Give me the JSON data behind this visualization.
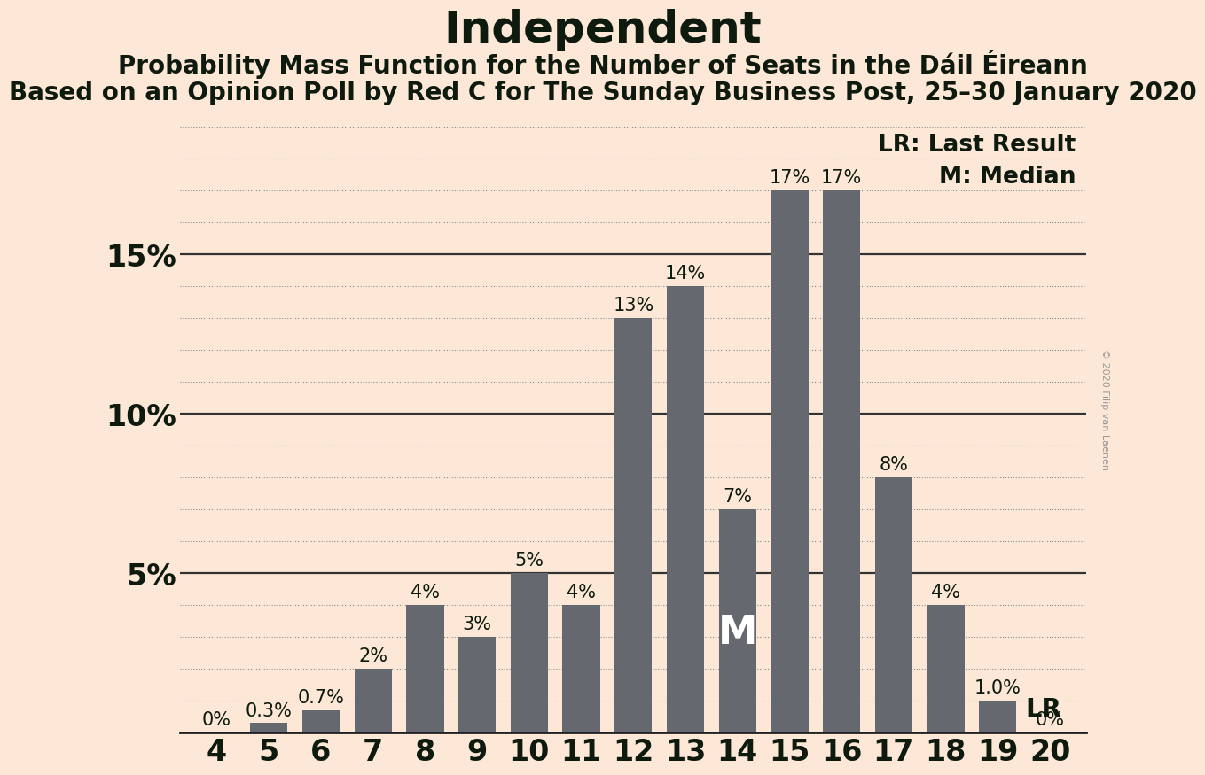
{
  "title": "Independent",
  "subtitle1": "Probability Mass Function for the Number of Seats in the Dáil Éireann",
  "subtitle2": "Based on an Opinion Poll by Red C for The Sunday Business Post, 25–30 January 2020",
  "watermark": "© 2020 Filip van Laenen",
  "categories": [
    4,
    5,
    6,
    7,
    8,
    9,
    10,
    11,
    12,
    13,
    14,
    15,
    16,
    17,
    18,
    19,
    20
  ],
  "values": [
    0.0,
    0.3,
    0.7,
    2.0,
    4.0,
    3.0,
    5.0,
    4.0,
    13.0,
    14.0,
    7.0,
    17.0,
    17.0,
    8.0,
    4.0,
    1.0,
    0.0
  ],
  "labels": [
    "0%",
    "0.3%",
    "0.7%",
    "2%",
    "4%",
    "3%",
    "5%",
    "4%",
    "13%",
    "14%",
    "7%",
    "17%",
    "17%",
    "8%",
    "4%",
    "1.0%",
    "0%"
  ],
  "bar_color": "#666870",
  "background_color": "#fde8d8",
  "text_color": "#0d1a0d",
  "median_seat": 14,
  "lr_seat": 19,
  "legend_lr": "LR: Last Result",
  "legend_m": "M: Median",
  "ylim": [
    0,
    19.5
  ],
  "yticks": [
    5,
    10,
    15
  ],
  "ytick_labels": [
    "5%",
    "10%",
    "15%"
  ],
  "title_fontsize": 36,
  "subtitle_fontsize": 20,
  "subtitle2_fontsize": 20,
  "label_fontsize": 15,
  "axis_fontsize": 24,
  "legend_fontsize": 19,
  "watermark_fontsize": 8
}
